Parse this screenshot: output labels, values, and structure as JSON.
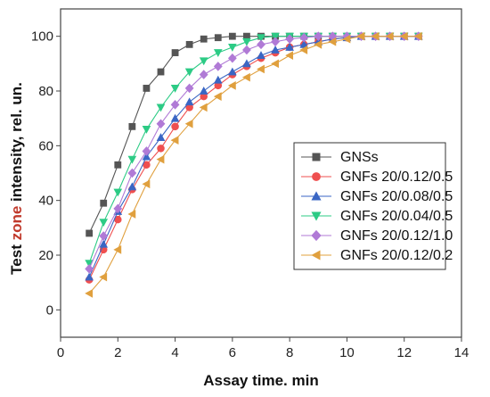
{
  "chart_data": {
    "type": "line",
    "xlabel": "Assay time. min",
    "ylabel_parts": [
      "Test ",
      "zone",
      " intensity, rel. un."
    ],
    "xlim": [
      0,
      14
    ],
    "ylim": [
      -10,
      110
    ],
    "x_ticks": [
      "0",
      "2",
      "4",
      "6",
      "8",
      "10",
      "12",
      "14"
    ],
    "y_ticks": [
      "0",
      "20",
      "40",
      "60",
      "80",
      "100"
    ],
    "grid": false,
    "legend_position": "right-middle",
    "x": [
      1.0,
      1.5,
      2.0,
      2.5,
      3.0,
      3.5,
      4.0,
      4.5,
      5.0,
      5.5,
      6.0,
      6.5,
      7.0,
      7.5,
      8.0,
      8.5,
      9.0,
      9.5,
      10.0,
      10.5,
      11.0,
      11.5,
      12.0,
      12.5
    ],
    "series": [
      {
        "name": "GNSs",
        "color": "#555555",
        "marker": "square",
        "values": [
          28,
          39,
          53,
          67,
          81,
          87,
          94,
          97,
          99,
          99.5,
          100,
          100,
          100,
          100,
          100,
          100,
          100,
          100,
          100,
          100,
          100,
          100,
          100,
          100
        ]
      },
      {
        "name": "GNFs 20/0.12/0.5",
        "color": "#ef4f4f",
        "marker": "circle",
        "values": [
          11,
          22,
          33,
          44,
          53,
          59,
          67,
          74,
          78,
          82,
          86,
          89,
          92,
          94,
          96,
          97,
          98,
          99,
          99.5,
          100,
          100,
          100,
          100,
          100
        ]
      },
      {
        "name": "GNFs 20/0.08/0.5",
        "color": "#3a66c4",
        "marker": "triangle-up",
        "values": [
          12,
          24,
          36,
          45,
          56,
          63,
          70,
          76,
          80,
          84,
          87,
          90,
          93,
          95,
          96,
          97,
          98,
          99,
          99.5,
          100,
          100,
          100,
          100,
          100
        ]
      },
      {
        "name": "GNFs 20/0.04/0.5",
        "color": "#2ccb85",
        "marker": "triangle-down",
        "values": [
          17,
          32,
          43,
          55,
          66,
          74,
          81,
          87,
          91,
          94,
          96,
          98,
          99.5,
          100,
          100,
          100,
          100,
          100,
          100,
          100,
          100,
          100,
          100,
          100
        ]
      },
      {
        "name": "GNFs 20/0.12/1.0",
        "color": "#b07ad6",
        "marker": "diamond",
        "values": [
          15,
          27,
          37,
          50,
          58,
          68,
          75,
          81,
          86,
          89,
          92,
          95,
          97,
          98,
          99,
          99.5,
          100,
          100,
          100,
          100,
          100,
          100,
          100,
          100
        ]
      },
      {
        "name": "GNFs 20/0.12/0.2",
        "color": "#e0a03e",
        "marker": "triangle-left",
        "values": [
          6,
          12,
          22,
          35,
          46,
          55,
          62,
          68,
          74,
          78,
          82,
          85,
          88,
          90,
          93,
          95,
          97,
          98,
          99,
          100,
          100,
          100,
          100,
          100
        ]
      }
    ]
  }
}
